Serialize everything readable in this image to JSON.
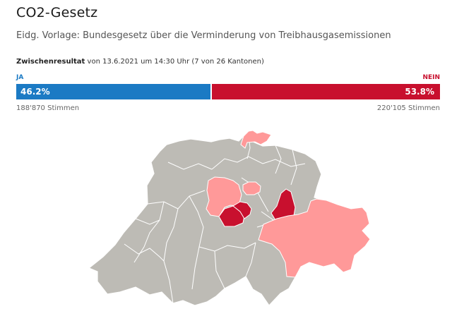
{
  "header": {
    "title": "CO2-Gesetz",
    "subtitle": "Eidg. Vorlage: Bundesgesetz über die Verminderung von Treibhausgasemissionen"
  },
  "status": {
    "label": "Zwischenresultat",
    "detail": "von 13.6.2021 um 14:30 Uhr (7 von 26 Kantonen)"
  },
  "result": {
    "yes_label": "JA",
    "no_label": "NEIN",
    "yes_percent": 46.2,
    "yes_percent_text": "46.2%",
    "no_percent_text": "53.8%",
    "yes_votes_text": "188'870 Stimmen",
    "no_votes_text": "220'105 Stimmen"
  },
  "colors": {
    "yes": "#1b7ac4",
    "no": "#c8102e",
    "no_light": "#ff9999",
    "no_dark": "#c8102e",
    "pending": "#bdbbb5",
    "border": "#ffffff"
  },
  "map": {
    "cantons": [
      {
        "name": "Schaffhausen",
        "status": "nein-light"
      },
      {
        "name": "Luzern",
        "status": "nein-light"
      },
      {
        "name": "Zug",
        "status": "nein-light"
      },
      {
        "name": "Obwalden",
        "status": "nein-dark"
      },
      {
        "name": "Nidwalden",
        "status": "nein-dark"
      },
      {
        "name": "Glarus",
        "status": "nein-dark"
      },
      {
        "name": "Graubünden",
        "status": "nein-light"
      }
    ]
  }
}
